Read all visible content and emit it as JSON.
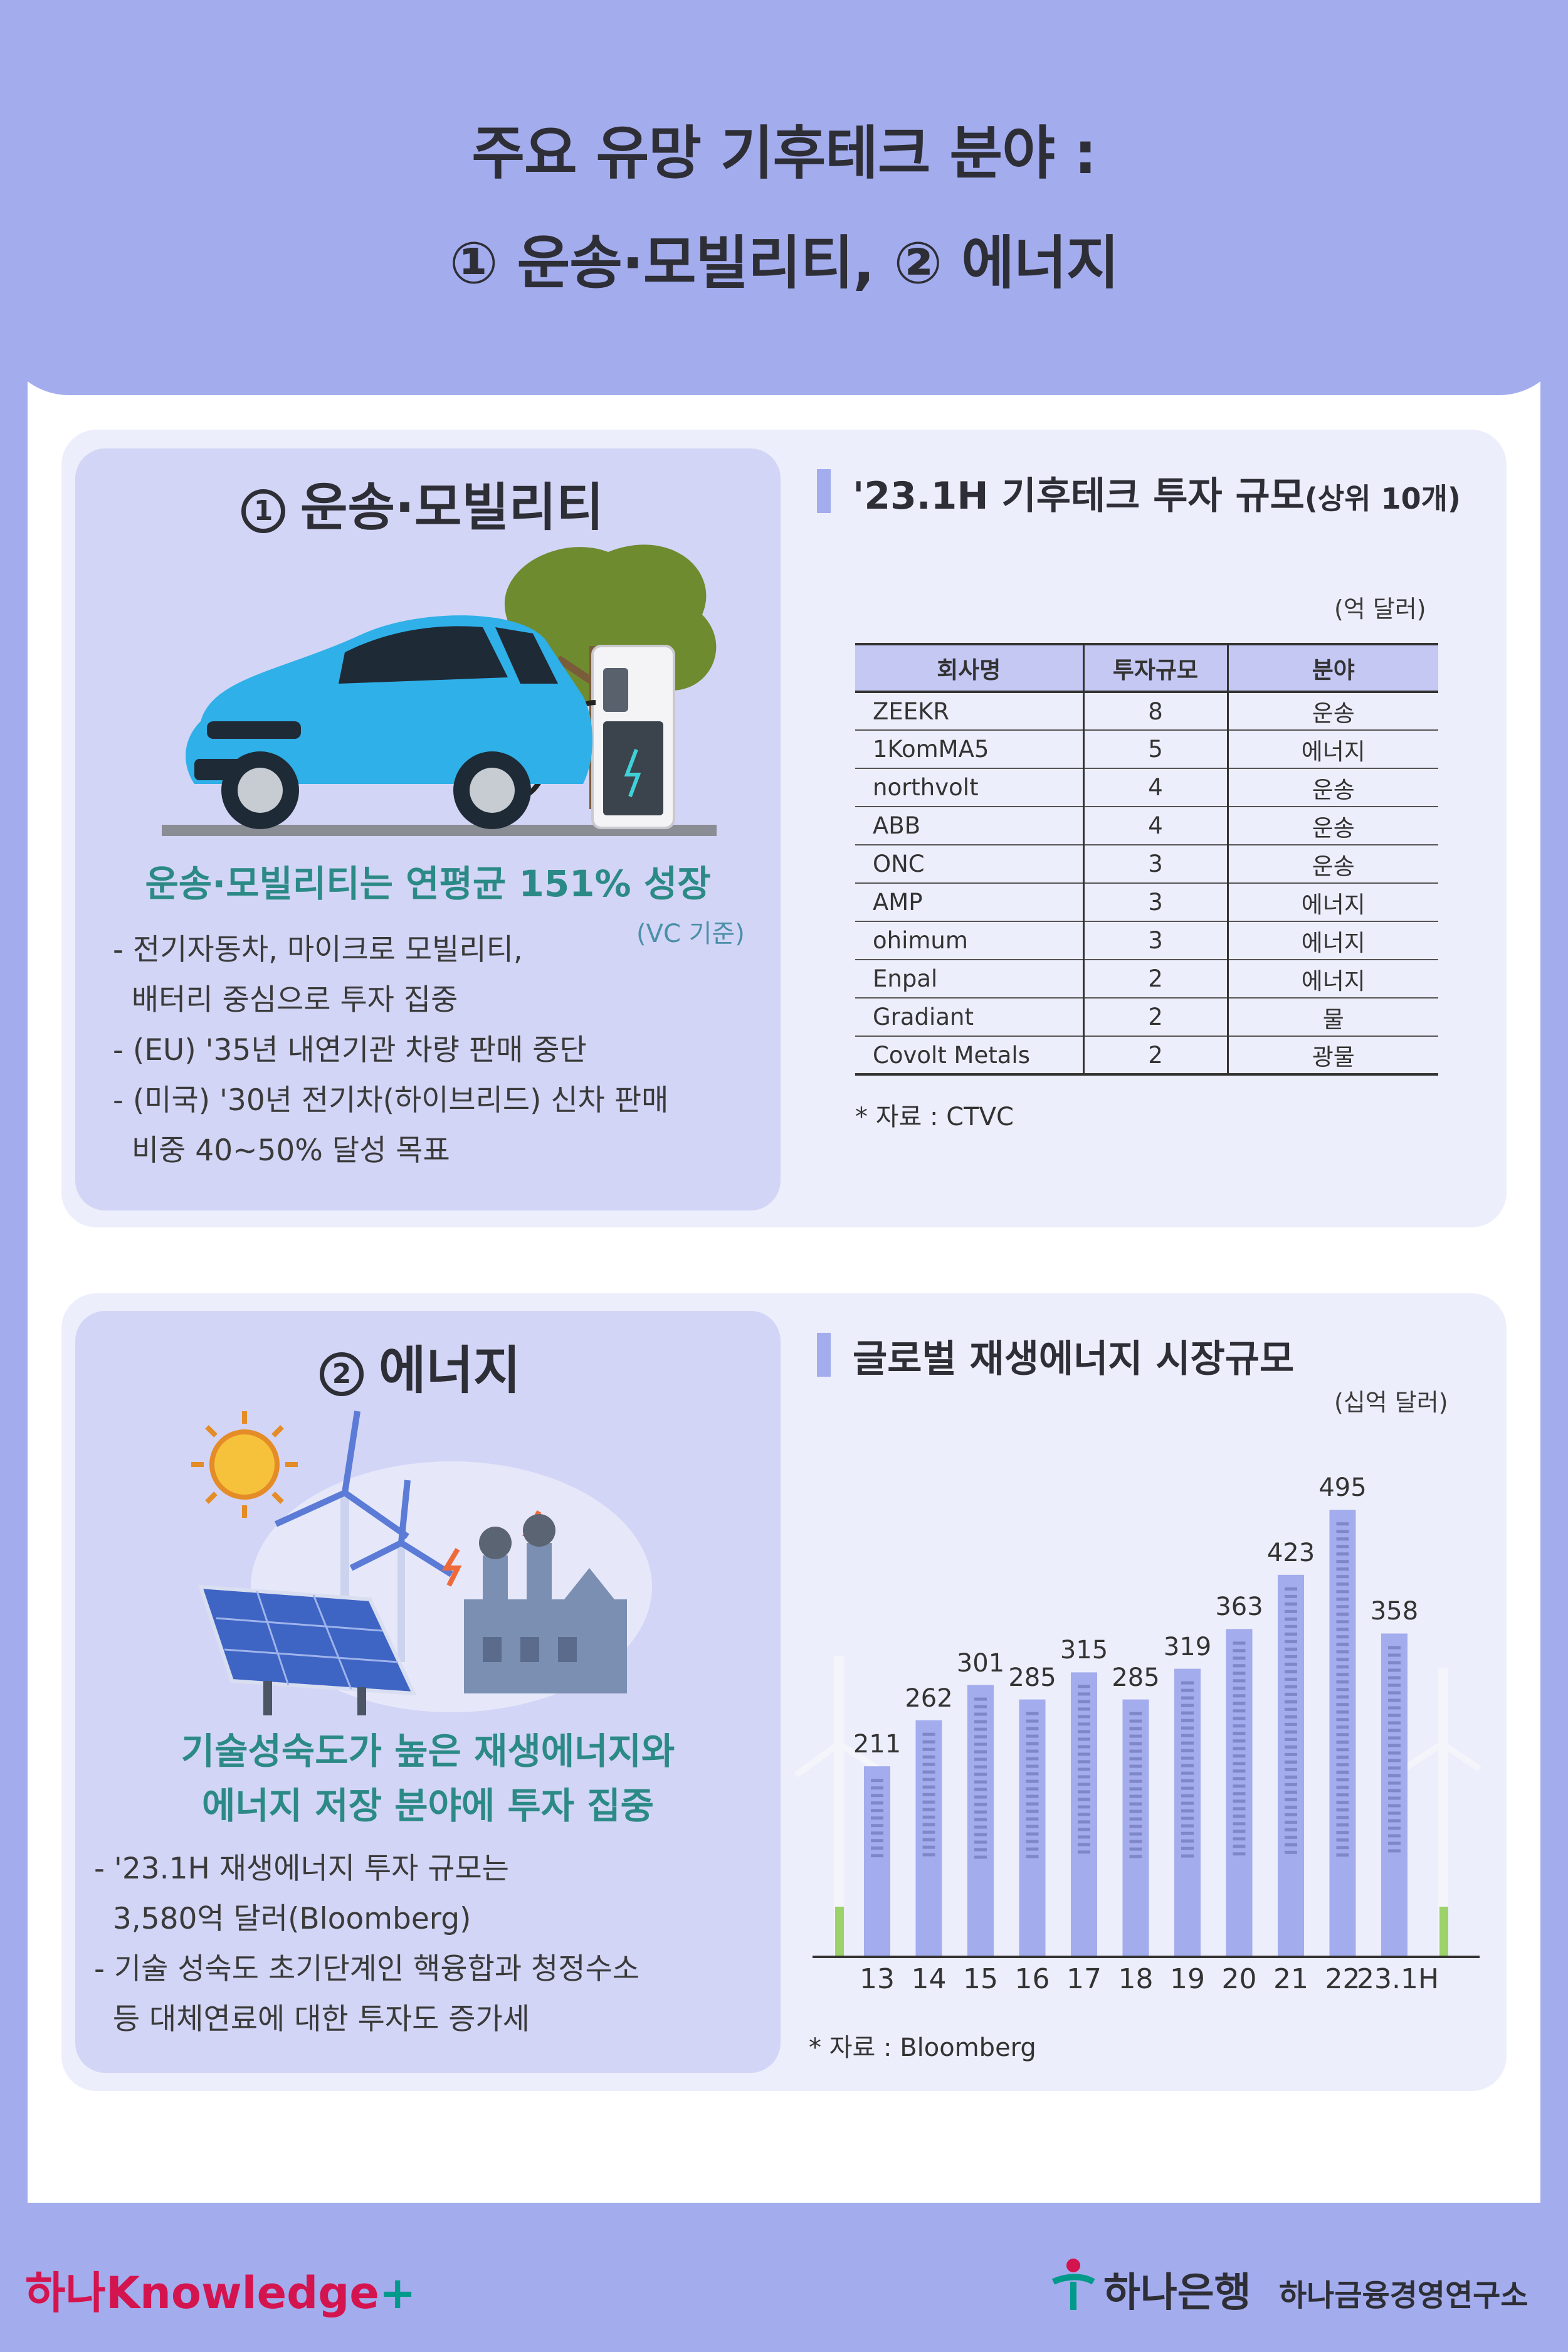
{
  "title": {
    "line1": "주요 유망 기후테크 분야 :",
    "line2": "① 운송·모빌리티, ② 에너지"
  },
  "section1": {
    "num": "1",
    "title": "운송·모빌리티",
    "headline": "운송·모빌리티는 연평균 151% 성장",
    "note": "(VC 기준)",
    "bullets": [
      "- 전기자동차, 마이크로 모빌리티,",
      "  배터리 중심으로 투자 집중",
      "- (EU) '35년 내연기관 차량 판매 중단",
      "- (미국) '30년 전기차(하이브리드) 신차 판매",
      "  비중 40~50% 달성 목표"
    ],
    "right_title": "'23.1H 기후테크 투자 규모",
    "right_title_small": "(상위 10개)",
    "unit": "(억 달러)",
    "source": "* 자료 : CTVC"
  },
  "chart_data": [
    {
      "type": "table",
      "title": "'23.1H 기후테크 투자 규모(상위 10개)",
      "unit": "(억 달러)",
      "columns": [
        "회사명",
        "투자규모",
        "분야"
      ],
      "rows": [
        [
          "ZEEKR",
          "8",
          "운송"
        ],
        [
          "1KomMA5",
          "5",
          "에너지"
        ],
        [
          "northvolt",
          "4",
          "운송"
        ],
        [
          "ABB",
          "4",
          "운송"
        ],
        [
          "ONC",
          "3",
          "운송"
        ],
        [
          "AMP",
          "3",
          "에너지"
        ],
        [
          "ohimum",
          "3",
          "에너지"
        ],
        [
          "Enpal",
          "2",
          "에너지"
        ],
        [
          "Gradiant",
          "2",
          "물"
        ],
        [
          "Covolt Metals",
          "2",
          "광물"
        ]
      ]
    },
    {
      "type": "bar",
      "title": "글로벌 재생에너지 시장규모",
      "unit": "(십억 달러)",
      "categories": [
        "13",
        "14",
        "15",
        "16",
        "17",
        "18",
        "19",
        "20",
        "21",
        "22",
        "23.1H"
      ],
      "values": [
        211,
        262,
        301,
        285,
        315,
        285,
        319,
        363,
        423,
        495,
        358
      ],
      "ylim": [
        0,
        500
      ]
    }
  ],
  "section2": {
    "num": "2",
    "title": "에너지",
    "headline1": "기술성숙도가 높은 재생에너지와",
    "headline2": "에너지 저장 분야에 투자 집중",
    "bullets": [
      "- '23.1H 재생에너지 투자 규모는",
      "  3,580억 달러(Bloomberg)",
      "- 기술 성숙도 초기단계인 핵융합과 청정수소",
      "  등 대체연료에 대한 투자도 증가세"
    ],
    "right_title": "글로벌 재생에너지 시장규모",
    "unit": "(십억 달러)",
    "source": "* 자료 : Bloomberg"
  },
  "footer": {
    "left_logo_a": "하나",
    "left_logo_b": "Knowledge",
    "plus": "+",
    "bank": "하나은행",
    "institute": "하나금융경영연구소"
  },
  "colors": {
    "background": "#a3aced",
    "panel": "#edeefb",
    "card": "#d3d5f6",
    "accent_text": "#2c8a86",
    "bar": "#a3aced",
    "brand_red": "#d4144e",
    "brand_green": "#009a8a"
  }
}
